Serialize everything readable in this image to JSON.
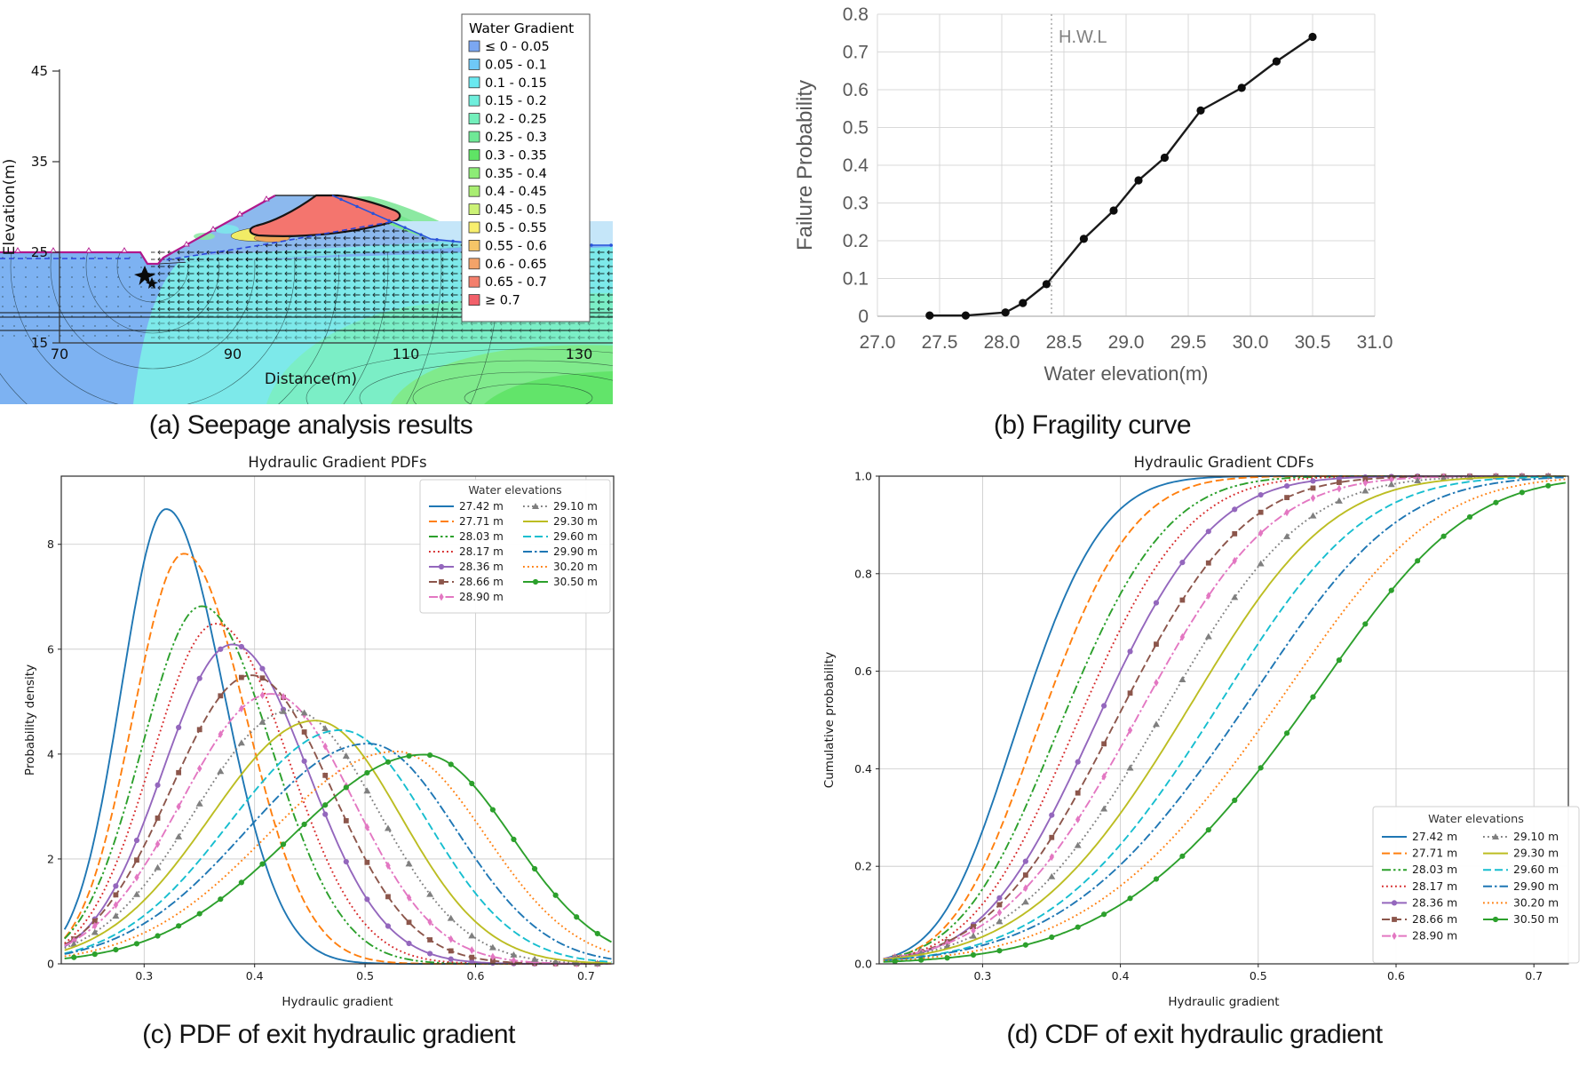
{
  "captions": {
    "a": "(a) Seepage analysis results",
    "b": "(b) Fragility curve",
    "c": "(c) PDF of exit hydraulic gradient",
    "d": "(d) CDF of exit hydraulic gradient"
  },
  "elevation_series": [
    {
      "label": "27.42 m",
      "color": "#1f77b4",
      "dash": "solid",
      "marker": null,
      "mode": 0.32,
      "width": 0.092,
      "skew": 0.44,
      "peak": 8.7
    },
    {
      "label": "27.71 m",
      "color": "#ff7f0e",
      "dash": "dashed",
      "marker": null,
      "mode": 0.336,
      "width": 0.102,
      "skew": 0.45,
      "peak": 7.8
    },
    {
      "label": "28.03 m",
      "color": "#2ca02c",
      "dash": "dashdotdot",
      "marker": null,
      "mode": 0.352,
      "width": 0.117,
      "skew": 0.46,
      "peak": 6.8
    },
    {
      "label": "28.17 m",
      "color": "#d62728",
      "dash": "dotted",
      "marker": null,
      "mode": 0.365,
      "width": 0.123,
      "skew": 0.47,
      "peak": 6.5
    },
    {
      "label": "28.36 m",
      "color": "#9467bd",
      "dash": "solid",
      "marker": "circle",
      "mode": 0.38,
      "width": 0.131,
      "skew": 0.48,
      "peak": 6.1
    },
    {
      "label": "28.66 m",
      "color": "#8c564b",
      "dash": "dashed",
      "marker": "square",
      "mode": 0.397,
      "width": 0.145,
      "skew": 0.5,
      "peak": 5.5
    },
    {
      "label": "28.90 m",
      "color": "#e377c2",
      "dash": "dashdot",
      "marker": "diamond",
      "mode": 0.415,
      "width": 0.155,
      "skew": 0.52,
      "peak": 5.15
    },
    {
      "label": "29.10 m",
      "color": "#7f7f7f",
      "dash": "dotted",
      "marker": "triangle",
      "mode": 0.434,
      "width": 0.165,
      "skew": 0.53,
      "peak": 4.85
    },
    {
      "label": "29.30 m",
      "color": "#bcbd22",
      "dash": "solid",
      "marker": null,
      "mode": 0.455,
      "width": 0.172,
      "skew": 0.55,
      "peak": 4.65
    },
    {
      "label": "29.60 m",
      "color": "#17becf",
      "dash": "dashed",
      "marker": null,
      "mode": 0.478,
      "width": 0.179,
      "skew": 0.56,
      "peak": 4.45
    },
    {
      "label": "29.90 m",
      "color": "#1f77b4",
      "dash": "dashdot",
      "marker": null,
      "mode": 0.503,
      "width": 0.19,
      "skew": 0.58,
      "peak": 4.2
    },
    {
      "label": "30.20 m",
      "color": "#ff7f0e",
      "dash": "dotted",
      "marker": null,
      "mode": 0.528,
      "width": 0.197,
      "skew": 0.59,
      "peak": 4.05
    },
    {
      "label": "30.50 m",
      "color": "#2ca02c",
      "dash": "solid",
      "marker": "circle",
      "mode": 0.553,
      "width": 0.2,
      "skew": 0.6,
      "peak": 4.0
    }
  ],
  "chart_data": [
    {
      "id": "seepage",
      "type": "heatmap",
      "xlabel": "Distance(m)",
      "ylabel": "Elevation(m)",
      "xticks": [
        70,
        90,
        110,
        130
      ],
      "yticks": [
        45,
        35,
        25,
        15
      ],
      "legend_title": "Water Gradient",
      "legend_bins": [
        {
          "label": "≤ 0 - 0.05",
          "color": "#7ba7f2"
        },
        {
          "label": "0.05 - 0.1",
          "color": "#6fc8f7"
        },
        {
          "label": "0.1 - 0.15",
          "color": "#69e9f0"
        },
        {
          "label": "0.15 - 0.2",
          "color": "#6eeedc"
        },
        {
          "label": "0.2 - 0.25",
          "color": "#73efbb"
        },
        {
          "label": "0.25 - 0.3",
          "color": "#6fe896"
        },
        {
          "label": "0.3 - 0.35",
          "color": "#5fe465"
        },
        {
          "label": "0.35 - 0.4",
          "color": "#8dec76"
        },
        {
          "label": "0.4 - 0.45",
          "color": "#a9ee72"
        },
        {
          "label": "0.45 - 0.5",
          "color": "#ccf276"
        },
        {
          "label": "0.5 - 0.55",
          "color": "#f8ef6e"
        },
        {
          "label": "0.55 - 0.6",
          "color": "#f6c568"
        },
        {
          "label": "0.6 - 0.65",
          "color": "#f3a369"
        },
        {
          "label": "0.65 - 0.7",
          "color": "#f37f6c"
        },
        {
          "label": "≥ 0.7",
          "color": "#f2606a"
        }
      ],
      "region_colors": {
        "low_blue": "#7db2f2",
        "cyan": "#7de9ea",
        "teal": "#7beec6",
        "green": "#80ea8c",
        "deep_green": "#62e46a",
        "water": "#c5e6f9",
        "dam_fill": "#8cb9ee",
        "high_red": "#f4756e",
        "mid_yellow": "#f1ec66",
        "mid_orange": "#efa65a",
        "phreatic_blue": "#2b46d9",
        "surface_magenta": "#b0188c"
      }
    },
    {
      "id": "fragility",
      "type": "line",
      "xlabel": "Water elevation(m)",
      "ylabel": "Failure Probability",
      "xlim": [
        27.0,
        31.0
      ],
      "ylim": [
        0,
        0.8
      ],
      "xticks": [
        27.0,
        27.5,
        28.0,
        28.5,
        29.0,
        29.5,
        30.0,
        30.5,
        31.0
      ],
      "yticks": [
        0,
        0.1,
        0.2,
        0.3,
        0.4,
        0.5,
        0.6,
        0.7,
        0.8
      ],
      "x": [
        27.42,
        27.71,
        28.03,
        28.17,
        28.36,
        28.66,
        28.9,
        29.1,
        29.31,
        29.6,
        29.93,
        30.21,
        30.5
      ],
      "y": [
        0.002,
        0.002,
        0.01,
        0.035,
        0.085,
        0.205,
        0.28,
        0.36,
        0.42,
        0.545,
        0.605,
        0.675,
        0.74
      ],
      "hwl": {
        "x": 28.4,
        "label": "H.W.L"
      },
      "line_color": "#1a1a1a",
      "grid_color": "#d9d9d9",
      "label_color": "#595959"
    },
    {
      "id": "pdf",
      "type": "line",
      "title": "Hydraulic Gradient PDFs",
      "xlabel": "Hydraulic gradient",
      "ylabel": "Probability density",
      "xlim": [
        0.225,
        0.725
      ],
      "ylim": [
        0,
        9.3
      ],
      "xticks": [
        0.3,
        0.4,
        0.5,
        0.6,
        0.7
      ],
      "yticks": [
        0,
        2,
        4,
        6,
        8
      ],
      "legend_title": "Water elevations",
      "series_ref": "elevation_series",
      "legend_position": "top-right"
    },
    {
      "id": "cdf",
      "type": "line",
      "title": "Hydraulic Gradient CDFs",
      "xlabel": "Hydraulic gradient",
      "ylabel": "Cumulative probability",
      "xlim": [
        0.225,
        0.725
      ],
      "ylim": [
        0,
        1.0
      ],
      "xticks": [
        0.3,
        0.4,
        0.5,
        0.6,
        0.7
      ],
      "yticks": [
        0.0,
        0.2,
        0.4,
        0.6,
        0.8,
        1.0
      ],
      "legend_title": "Water elevations",
      "series_ref": "elevation_series",
      "legend_position": "bottom-right"
    }
  ]
}
